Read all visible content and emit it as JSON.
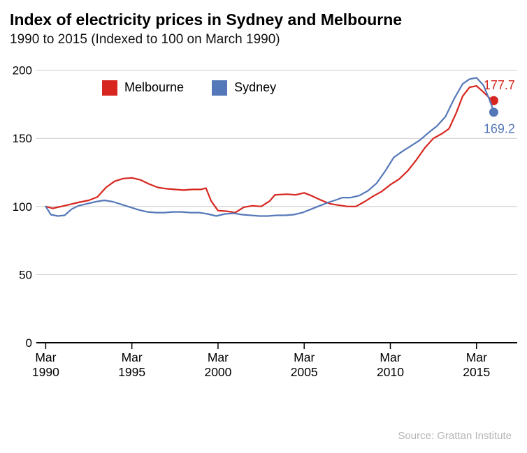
{
  "header": {
    "title": "Index of electricity prices in Sydney and Melbourne",
    "subtitle": "1990 to 2015 (Indexed to 100 on March 1990)"
  },
  "footer": {
    "source": "Source: Grattan Institute"
  },
  "chart_data": {
    "type": "line",
    "title": "Index of electricity prices in Sydney and Melbourne",
    "subtitle": "1990 to 2015 (Indexed to 100 on March 1990)",
    "xlabel": "",
    "ylabel": "",
    "x_range": [
      1989.9,
      2017.4
    ],
    "y_range": [
      0,
      208
    ],
    "y_ticks": [
      0,
      50,
      100,
      150,
      200
    ],
    "x_ticks": [
      {
        "pos": 1990.2,
        "line1": "Mar",
        "line2": "1990"
      },
      {
        "pos": 1995.2,
        "line1": "Mar",
        "line2": "1995"
      },
      {
        "pos": 2000.2,
        "line1": "Mar",
        "line2": "2000"
      },
      {
        "pos": 2005.2,
        "line1": "Mar",
        "line2": "2005"
      },
      {
        "pos": 2010.2,
        "line1": "Mar",
        "line2": "2010"
      },
      {
        "pos": 2015.2,
        "line1": "Mar",
        "line2": "2015"
      }
    ],
    "grid": "horizontal",
    "legend_position": "top-left-inside",
    "axis_color": "#000000",
    "gridline_color": "#cccccc",
    "series": [
      {
        "name": "Melbourne",
        "color": "#d7261f",
        "end_label": "177.7",
        "end_label_position": "above",
        "points": [
          [
            1990.2,
            100
          ],
          [
            1990.6,
            98.6
          ],
          [
            1991.1,
            100
          ],
          [
            1991.6,
            101.5
          ],
          [
            1992.1,
            103
          ],
          [
            1992.7,
            104.5
          ],
          [
            1993.2,
            107
          ],
          [
            1993.7,
            114
          ],
          [
            1994.2,
            118.5
          ],
          [
            1994.7,
            120.5
          ],
          [
            1995.2,
            121
          ],
          [
            1995.7,
            119.5
          ],
          [
            1996.2,
            116.5
          ],
          [
            1996.7,
            114
          ],
          [
            1997.2,
            113
          ],
          [
            1997.7,
            112.5
          ],
          [
            1998.2,
            112
          ],
          [
            1998.7,
            112.5
          ],
          [
            1999.2,
            112.5
          ],
          [
            1999.5,
            113.5
          ],
          [
            1999.8,
            104
          ],
          [
            2000.2,
            97
          ],
          [
            2000.7,
            96.5
          ],
          [
            2001.2,
            95.5
          ],
          [
            2001.7,
            99.5
          ],
          [
            2002.2,
            100.5
          ],
          [
            2002.7,
            100
          ],
          [
            2003.2,
            104
          ],
          [
            2003.5,
            108.5
          ],
          [
            2004.2,
            109
          ],
          [
            2004.7,
            108.5
          ],
          [
            2005.2,
            110
          ],
          [
            2005.6,
            108
          ],
          [
            2006.2,
            104.5
          ],
          [
            2006.7,
            102
          ],
          [
            2007.2,
            101
          ],
          [
            2007.7,
            100
          ],
          [
            2008.2,
            100
          ],
          [
            2008.7,
            103.5
          ],
          [
            2009.2,
            107.5
          ],
          [
            2009.7,
            111
          ],
          [
            2010.2,
            116
          ],
          [
            2010.7,
            120
          ],
          [
            2011.2,
            126
          ],
          [
            2011.7,
            134
          ],
          [
            2012.2,
            143
          ],
          [
            2012.7,
            150
          ],
          [
            2013.2,
            153.5
          ],
          [
            2013.6,
            157
          ],
          [
            2014.0,
            168
          ],
          [
            2014.4,
            181
          ],
          [
            2014.8,
            187.5
          ],
          [
            2015.2,
            188.5
          ],
          [
            2015.6,
            184
          ],
          [
            2016.0,
            179
          ],
          [
            2016.2,
            177.7
          ]
        ]
      },
      {
        "name": "Sydney",
        "color": "#5578b8",
        "end_label": "169.2",
        "end_label_position": "below",
        "points": [
          [
            1990.2,
            100
          ],
          [
            1990.5,
            94
          ],
          [
            1990.9,
            93
          ],
          [
            1991.3,
            93.5
          ],
          [
            1991.7,
            98
          ],
          [
            1992.1,
            100.5
          ],
          [
            1992.6,
            102
          ],
          [
            1993.1,
            103.5
          ],
          [
            1993.6,
            104.5
          ],
          [
            1994.1,
            103.5
          ],
          [
            1994.6,
            101.5
          ],
          [
            1995.1,
            99.5
          ],
          [
            1995.6,
            97.5
          ],
          [
            1996.1,
            96
          ],
          [
            1996.6,
            95.5
          ],
          [
            1997.1,
            95.5
          ],
          [
            1997.6,
            96
          ],
          [
            1998.1,
            96
          ],
          [
            1998.6,
            95.5
          ],
          [
            1999.1,
            95.5
          ],
          [
            1999.6,
            94.5
          ],
          [
            2000.1,
            93
          ],
          [
            2000.6,
            94.5
          ],
          [
            2001.1,
            95
          ],
          [
            2001.6,
            94
          ],
          [
            2002.1,
            93.5
          ],
          [
            2002.6,
            93
          ],
          [
            2003.1,
            93
          ],
          [
            2003.6,
            93.5
          ],
          [
            2004.1,
            93.5
          ],
          [
            2004.6,
            94
          ],
          [
            2005.1,
            95.5
          ],
          [
            2005.6,
            98
          ],
          [
            2006.1,
            100.5
          ],
          [
            2006.6,
            103
          ],
          [
            2007.1,
            105
          ],
          [
            2007.4,
            106.5
          ],
          [
            2007.9,
            106.5
          ],
          [
            2008.4,
            108
          ],
          [
            2008.9,
            111.5
          ],
          [
            2009.4,
            117
          ],
          [
            2009.9,
            126
          ],
          [
            2010.4,
            136
          ],
          [
            2010.9,
            140.5
          ],
          [
            2011.4,
            144.5
          ],
          [
            2011.9,
            148.5
          ],
          [
            2012.4,
            154
          ],
          [
            2012.9,
            159
          ],
          [
            2013.4,
            166
          ],
          [
            2013.9,
            179
          ],
          [
            2014.4,
            190
          ],
          [
            2014.8,
            193.5
          ],
          [
            2015.2,
            194.5
          ],
          [
            2015.6,
            189
          ],
          [
            2016.0,
            177
          ],
          [
            2016.2,
            169.2
          ]
        ]
      }
    ]
  }
}
